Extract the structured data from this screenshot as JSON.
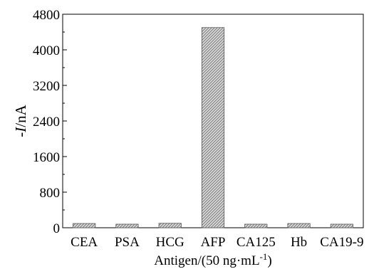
{
  "chart_data": {
    "type": "bar",
    "categories": [
      "CEA",
      "PSA",
      "HCG",
      "AFP",
      "CA125",
      "Hb",
      "CA19-9"
    ],
    "values": [
      95,
      80,
      100,
      4500,
      80,
      95,
      80
    ],
    "xlabel": "Antigen/(50 ng·mL",
    "xlabel_superscript": "-1",
    "xlabel_suffix": ")",
    "ylabel_prefix": "-",
    "ylabel_italic": "I",
    "ylabel_suffix": "/nA",
    "ylim": [
      0,
      4800
    ],
    "yticks": [
      0,
      800,
      1600,
      2400,
      3200,
      4000,
      4800
    ],
    "grid": false,
    "bar_fill": "#d9d9d9",
    "bar_hatch": "diagonal",
    "bar_edge": "#555555"
  }
}
